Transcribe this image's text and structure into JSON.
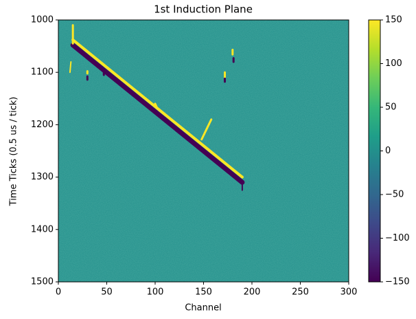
{
  "chart_data": {
    "type": "heatmap",
    "title": "1st Induction Plane",
    "x_label": "Channel",
    "y_label": "Time Ticks (0.5 us / tick)",
    "colormap": "viridis",
    "background_value": 0,
    "xlim": [
      0,
      300
    ],
    "xticks": [
      0,
      50,
      100,
      150,
      200,
      250,
      300
    ],
    "ylim": [
      1500,
      1000
    ],
    "yticks": [
      1000,
      1100,
      1200,
      1300,
      1400,
      1500
    ],
    "clim": [
      -150,
      150
    ],
    "cticks": [
      {
        "value": -150,
        "label": "−150"
      },
      {
        "value": -100,
        "label": "−100"
      },
      {
        "value": -50,
        "label": "−50"
      },
      0,
      50,
      100,
      150
    ],
    "tracks": [
      {
        "x": [
          15,
          190
        ],
        "y": [
          1048,
          1310
        ],
        "value": -150,
        "width": 7
      },
      {
        "x": [
          15,
          190
        ],
        "y": [
          1038,
          1300
        ],
        "value": 150,
        "width": 4
      },
      {
        "x": [
          148,
          158
        ],
        "y": [
          1228,
          1190
        ],
        "value": 150,
        "width": 3
      },
      {
        "x": [
          15,
          15
        ],
        "y": [
          1010,
          1045
        ],
        "value": 150,
        "width": 3
      },
      {
        "x": [
          12,
          13
        ],
        "y": [
          1100,
          1080
        ],
        "value": 150,
        "width": 2
      },
      {
        "x": [
          30,
          30
        ],
        "y": [
          1098,
          1102
        ],
        "value": 150,
        "width": 3
      },
      {
        "x": [
          30,
          30
        ],
        "y": [
          1108,
          1114
        ],
        "value": -150,
        "width": 3
      },
      {
        "x": [
          180,
          180
        ],
        "y": [
          1057,
          1066
        ],
        "value": 150,
        "width": 3
      },
      {
        "x": [
          181,
          181
        ],
        "y": [
          1073,
          1080
        ],
        "value": -150,
        "width": 3
      },
      {
        "x": [
          172,
          172
        ],
        "y": [
          1100,
          1110
        ],
        "value": 150,
        "width": 3
      },
      {
        "x": [
          172,
          172
        ],
        "y": [
          1112,
          1118
        ],
        "value": -150,
        "width": 3
      },
      {
        "x": [
          47,
          47
        ],
        "y": [
          1095,
          1105
        ],
        "value": -150,
        "width": 3
      },
      {
        "x": [
          100,
          102
        ],
        "y": [
          1160,
          1168
        ],
        "value": 150,
        "width": 3
      },
      {
        "x": [
          190,
          190
        ],
        "y": [
          1315,
          1325
        ],
        "value": -150,
        "width": 2
      }
    ]
  }
}
